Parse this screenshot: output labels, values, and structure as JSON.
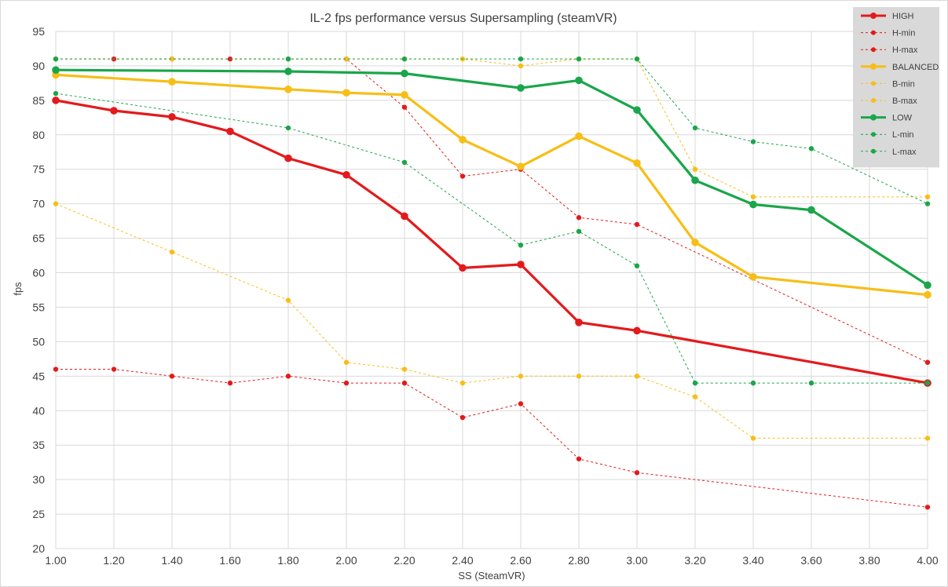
{
  "chart_data": {
    "type": "line",
    "title": "IL-2 fps performance versus Supersampling (steamVR)",
    "xlabel": "SS (SteamVR)",
    "ylabel": "fps",
    "ylim": [
      20,
      95
    ],
    "ytick_step": 5,
    "x_ticks": [
      1.0,
      1.2,
      1.4,
      1.6,
      1.8,
      2.0,
      2.2,
      2.4,
      2.6,
      2.8,
      3.0,
      3.2,
      3.4,
      3.6,
      3.8,
      4.0
    ],
    "x_tick_labels": [
      "1.00",
      "1.20",
      "1.40",
      "1.60",
      "1.80",
      "2.00",
      "2.20",
      "2.40",
      "2.60",
      "2.80",
      "3.00",
      "3.20",
      "3.40",
      "3.60",
      "3.80",
      "4.00"
    ],
    "grid": true,
    "legend_position": "top-right",
    "colors": {
      "high": "#e31a1c",
      "balanced": "#f7be16",
      "low": "#1aa64a",
      "grid": "#d9d9d9",
      "legend_bg": "#d9d9d9"
    },
    "series": [
      {
        "name": "HIGH",
        "color": "#e31a1c",
        "dashed": false,
        "points": [
          [
            1.0,
            85
          ],
          [
            1.2,
            83.5
          ],
          [
            1.4,
            82.6
          ],
          [
            1.6,
            80.5
          ],
          [
            1.8,
            76.6
          ],
          [
            2.0,
            74.2
          ],
          [
            2.2,
            68.2
          ],
          [
            2.4,
            60.7
          ],
          [
            2.6,
            61.2
          ],
          [
            2.8,
            52.8
          ],
          [
            3.0,
            51.6
          ],
          [
            4.0,
            44
          ]
        ]
      },
      {
        "name": "H-min",
        "color": "#e31a1c",
        "dashed": true,
        "points": [
          [
            1.0,
            46
          ],
          [
            1.2,
            46
          ],
          [
            1.4,
            45
          ],
          [
            1.6,
            44
          ],
          [
            1.8,
            45
          ],
          [
            2.0,
            44
          ],
          [
            2.2,
            44
          ],
          [
            2.4,
            39
          ],
          [
            2.6,
            41
          ],
          [
            2.8,
            33
          ],
          [
            3.0,
            31
          ],
          [
            4.0,
            26
          ]
        ]
      },
      {
        "name": "H-max",
        "color": "#e31a1c",
        "dashed": true,
        "points": [
          [
            1.0,
            91
          ],
          [
            1.2,
            91
          ],
          [
            1.4,
            91
          ],
          [
            1.6,
            91
          ],
          [
            1.8,
            91
          ],
          [
            2.0,
            91
          ],
          [
            2.2,
            84
          ],
          [
            2.4,
            74
          ],
          [
            2.6,
            75
          ],
          [
            2.8,
            68
          ],
          [
            3.0,
            67
          ],
          [
            4.0,
            47
          ]
        ]
      },
      {
        "name": "BALANCED",
        "color": "#f7be16",
        "dashed": false,
        "points": [
          [
            1.0,
            88.7
          ],
          [
            1.4,
            87.7
          ],
          [
            1.8,
            86.6
          ],
          [
            2.0,
            86.1
          ],
          [
            2.2,
            85.8
          ],
          [
            2.4,
            79.3
          ],
          [
            2.6,
            75.4
          ],
          [
            2.8,
            79.8
          ],
          [
            3.0,
            75.9
          ],
          [
            3.2,
            64.4
          ],
          [
            3.4,
            59.4
          ],
          [
            4.0,
            56.8
          ]
        ]
      },
      {
        "name": "B-min",
        "color": "#f7be16",
        "dashed": true,
        "points": [
          [
            1.0,
            70
          ],
          [
            1.4,
            63
          ],
          [
            1.8,
            56
          ],
          [
            2.0,
            47
          ],
          [
            2.2,
            46
          ],
          [
            2.4,
            44
          ],
          [
            2.6,
            45
          ],
          [
            2.8,
            45
          ],
          [
            3.0,
            45
          ],
          [
            3.2,
            42
          ],
          [
            3.4,
            36
          ],
          [
            4.0,
            36
          ]
        ]
      },
      {
        "name": "B-max",
        "color": "#f7be16",
        "dashed": true,
        "points": [
          [
            1.0,
            91
          ],
          [
            1.4,
            91
          ],
          [
            1.8,
            91
          ],
          [
            2.0,
            91
          ],
          [
            2.2,
            91
          ],
          [
            2.4,
            91
          ],
          [
            2.6,
            90
          ],
          [
            2.8,
            91
          ],
          [
            3.0,
            91
          ],
          [
            3.2,
            75
          ],
          [
            3.4,
            71
          ],
          [
            4.0,
            71
          ]
        ]
      },
      {
        "name": "LOW",
        "color": "#1aa64a",
        "dashed": false,
        "points": [
          [
            1.0,
            89.4
          ],
          [
            1.8,
            89.2
          ],
          [
            2.2,
            88.9
          ],
          [
            2.6,
            86.8
          ],
          [
            2.8,
            87.9
          ],
          [
            3.0,
            83.6
          ],
          [
            3.2,
            73.4
          ],
          [
            3.4,
            69.9
          ],
          [
            3.6,
            69.1
          ],
          [
            4.0,
            58.2
          ]
        ]
      },
      {
        "name": "L-min",
        "color": "#1aa64a",
        "dashed": true,
        "points": [
          [
            1.0,
            86
          ],
          [
            1.8,
            81
          ],
          [
            2.2,
            76
          ],
          [
            2.6,
            64
          ],
          [
            2.8,
            66
          ],
          [
            3.0,
            61
          ],
          [
            3.2,
            44
          ],
          [
            3.4,
            44
          ],
          [
            3.6,
            44
          ],
          [
            4.0,
            44
          ]
        ]
      },
      {
        "name": "L-max",
        "color": "#1aa64a",
        "dashed": true,
        "points": [
          [
            1.0,
            91
          ],
          [
            1.8,
            91
          ],
          [
            2.2,
            91
          ],
          [
            2.6,
            91
          ],
          [
            2.8,
            91
          ],
          [
            3.0,
            91
          ],
          [
            3.2,
            81
          ],
          [
            3.4,
            79
          ],
          [
            3.6,
            78
          ],
          [
            4.0,
            70
          ]
        ]
      }
    ]
  }
}
